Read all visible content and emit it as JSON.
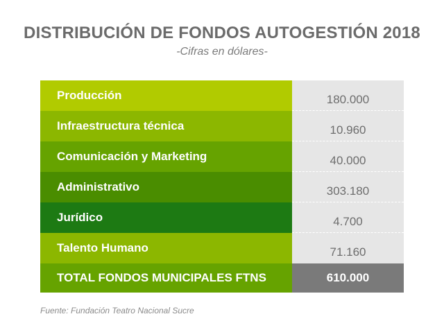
{
  "chart_data": {
    "type": "table",
    "title": "DISTRIBUCIÓN DE FONDOS AUTOGESTIÓN 2018",
    "subtitle": "-Cifras en dólares-",
    "rows": [
      {
        "label": "Producción",
        "value": "180.000",
        "color": "#b1cb00"
      },
      {
        "label": "Infraestructura técnica",
        "value": "10.960",
        "color": "#8cb700"
      },
      {
        "label": "Comunicación y Marketing",
        "value": "40.000",
        "color": "#66a300"
      },
      {
        "label": "Administrativo",
        "value": "303.180",
        "color": "#4a8d00"
      },
      {
        "label": "Jurídico",
        "value": "4.700",
        "color": "#1d7a13"
      },
      {
        "label": "Talento Humano",
        "value": "71.160",
        "color": "#8cb700"
      }
    ],
    "total": {
      "label": "TOTAL FONDOS MUNICIPALES FTNS",
      "value": "610.000",
      "color": "#66a300"
    },
    "source": "Fuente: Fundación Teatro Nacional Sucre"
  }
}
